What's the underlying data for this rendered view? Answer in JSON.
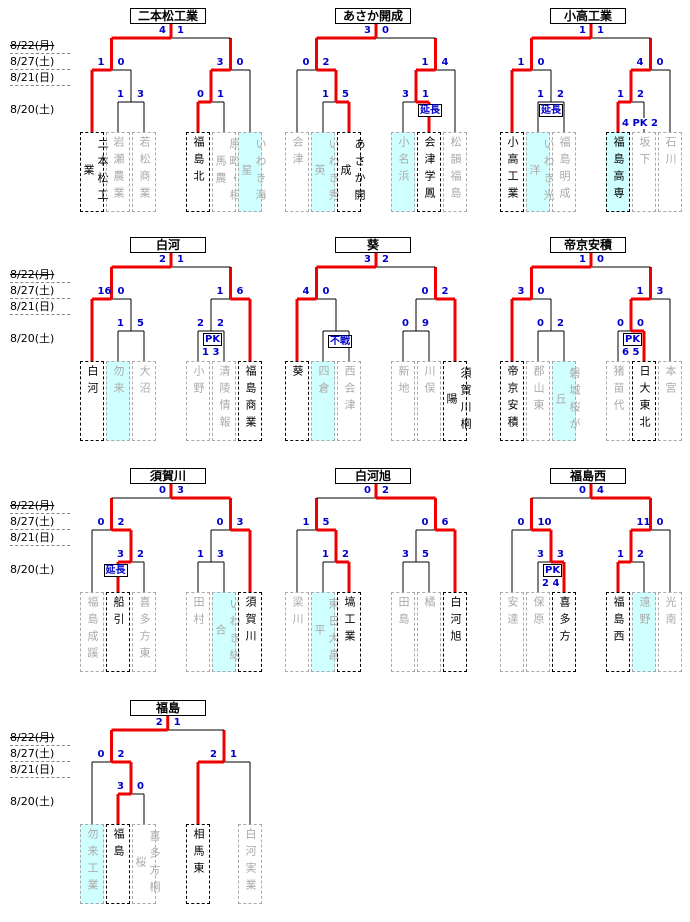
{
  "dates": [
    "8/22(月)",
    "8/27(土)",
    "8/21(日)",
    "8/20(土)"
  ],
  "blocks": [
    {
      "winner": "二本松工業",
      "top_scores": [
        "4",
        "1"
      ],
      "left_scores": [
        "1",
        "0"
      ],
      "right_scores": [
        "3",
        "0"
      ],
      "ll_scores": [
        "1",
        "3"
      ],
      "rr_scores": [
        "0",
        "1"
      ],
      "teams": [
        {
          "name": "二本松工業",
          "lost": false,
          "cyan": false
        },
        {
          "name": "岩瀬農業",
          "lost": true,
          "cyan": false
        },
        {
          "name": "若松商業",
          "lost": true,
          "cyan": false
        },
        {
          "name": "福島北",
          "lost": false,
          "cyan": false
        },
        {
          "name": "原町・相馬農",
          "lost": true,
          "cyan": false
        },
        {
          "name": "いわき海星",
          "lost": true,
          "cyan": true
        }
      ],
      "notes": []
    },
    {
      "winner": "あさか開成",
      "top_scores": [
        "3",
        "0"
      ],
      "left_scores": [
        "0",
        "2"
      ],
      "right_scores": [
        "1",
        "4"
      ],
      "ll_scores": [
        "1",
        "5"
      ],
      "rr_scores": [
        "3",
        "1"
      ],
      "teams": [
        {
          "name": "会津",
          "lost": true,
          "cyan": false
        },
        {
          "name": "いわき秀英",
          "lost": true,
          "cyan": true
        },
        {
          "name": "あさか開成",
          "lost": false,
          "cyan": false
        },
        {
          "name": "小名浜",
          "lost": true,
          "cyan": true
        },
        {
          "name": "会津学鳳",
          "lost": false,
          "cyan": false
        },
        {
          "name": "松韻福島",
          "lost": true,
          "cyan": false
        }
      ],
      "notes": [
        "延長"
      ]
    },
    {
      "winner": "小高工業",
      "top_scores": [
        "1",
        "1"
      ],
      "left_scores": [
        "1",
        "0"
      ],
      "right_scores": [
        "4",
        "0"
      ],
      "ll_scores": [
        "1",
        "2"
      ],
      "rr_scores": [
        "1",
        "2"
      ],
      "teams": [
        {
          "name": "小高工業",
          "lost": false,
          "cyan": false
        },
        {
          "name": "いわき光洋",
          "lost": true,
          "cyan": true
        },
        {
          "name": "福島明成",
          "lost": true,
          "cyan": false
        },
        {
          "name": "福島高専",
          "lost": false,
          "cyan": true
        },
        {
          "name": "坂下",
          "lost": true,
          "cyan": false
        },
        {
          "name": "石川",
          "lost": true,
          "cyan": false
        }
      ],
      "notes": [
        "4 PK 2",
        "延長"
      ]
    },
    {
      "winner": "白河",
      "top_scores": [
        "2",
        "1"
      ],
      "left_scores": [
        "16",
        "0"
      ],
      "right_scores": [
        "1",
        "6"
      ],
      "ll_scores": [
        "1",
        "5"
      ],
      "rr_scores": [
        "2",
        "2"
      ],
      "teams": [
        {
          "name": "白河",
          "lost": false,
          "cyan": false
        },
        {
          "name": "勿来",
          "lost": true,
          "cyan": true
        },
        {
          "name": "大沼",
          "lost": true,
          "cyan": false
        },
        {
          "name": "小野",
          "lost": true,
          "cyan": false
        },
        {
          "name": "清陵情報",
          "lost": true,
          "cyan": false
        },
        {
          "name": "福島商業",
          "lost": false,
          "cyan": false
        }
      ],
      "notes": [
        "PK",
        "1 3"
      ]
    },
    {
      "winner": "葵",
      "top_scores": [
        "3",
        "2"
      ],
      "left_scores": [
        "4",
        "0"
      ],
      "right_scores": [
        "0",
        "2"
      ],
      "ll_scores": [],
      "rr_scores": [
        "0",
        "9"
      ],
      "teams": [
        {
          "name": "葵",
          "lost": false,
          "cyan": false
        },
        {
          "name": "四倉",
          "lost": true,
          "cyan": true
        },
        {
          "name": "西会津",
          "lost": true,
          "cyan": false
        },
        {
          "name": "新地",
          "lost": true,
          "cyan": false
        },
        {
          "name": "川俣",
          "lost": true,
          "cyan": false
        },
        {
          "name": "須賀川桐陽",
          "lost": false,
          "cyan": false
        }
      ],
      "notes": [
        "不戦"
      ]
    },
    {
      "winner": "帝京安積",
      "top_scores": [
        "1",
        "0"
      ],
      "left_scores": [
        "3",
        "0"
      ],
      "right_scores": [
        "1",
        "3"
      ],
      "ll_scores": [
        "0",
        "2"
      ],
      "rr_scores": [
        "0",
        "0"
      ],
      "teams": [
        {
          "name": "帝京安積",
          "lost": false,
          "cyan": false
        },
        {
          "name": "郡山東",
          "lost": true,
          "cyan": false
        },
        {
          "name": "磐城桜が丘",
          "lost": true,
          "cyan": true
        },
        {
          "name": "猪苗代",
          "lost": true,
          "cyan": false
        },
        {
          "name": "日大東北",
          "lost": false,
          "cyan": false
        },
        {
          "name": "本宮",
          "lost": true,
          "cyan": false
        }
      ],
      "notes": [
        "PK",
        "6 5"
      ]
    },
    {
      "winner": "須賀川",
      "top_scores": [
        "0",
        "3"
      ],
      "left_scores": [
        "0",
        "2"
      ],
      "right_scores": [
        "0",
        "3"
      ],
      "ll_scores": [
        "3",
        "2"
      ],
      "rr_scores": [
        "1",
        "3"
      ],
      "teams": [
        {
          "name": "福島成蹊",
          "lost": true,
          "cyan": false
        },
        {
          "name": "船引",
          "lost": false,
          "cyan": false
        },
        {
          "name": "喜多方東",
          "lost": true,
          "cyan": false
        },
        {
          "name": "田村",
          "lost": true,
          "cyan": false
        },
        {
          "name": "いわき総合",
          "lost": true,
          "cyan": true
        },
        {
          "name": "須賀川",
          "lost": false,
          "cyan": false
        }
      ],
      "notes": [
        "延長"
      ]
    },
    {
      "winner": "白河旭",
      "top_scores": [
        "0",
        "2"
      ],
      "left_scores": [
        "1",
        "5"
      ],
      "right_scores": [
        "0",
        "6"
      ],
      "ll_scores": [
        "1",
        "2"
      ],
      "rr_scores": [
        "3",
        "5"
      ],
      "teams": [
        {
          "name": "梁川",
          "lost": true,
          "cyan": false
        },
        {
          "name": "東日大昌平",
          "lost": true,
          "cyan": true
        },
        {
          "name": "塙工業",
          "lost": false,
          "cyan": false
        },
        {
          "name": "田島",
          "lost": true,
          "cyan": false
        },
        {
          "name": "橘",
          "lost": true,
          "cyan": false
        },
        {
          "name": "白河旭",
          "lost": false,
          "cyan": false
        }
      ],
      "notes": []
    },
    {
      "winner": "福島西",
      "top_scores": [
        "0",
        "4"
      ],
      "left_scores": [
        "0",
        "10"
      ],
      "right_scores": [
        "11",
        "0"
      ],
      "ll_scores": [
        "3",
        "3"
      ],
      "rr_scores": [
        "1",
        "2"
      ],
      "teams": [
        {
          "name": "安達",
          "lost": true,
          "cyan": false
        },
        {
          "name": "保原",
          "lost": true,
          "cyan": false
        },
        {
          "name": "喜多方",
          "lost": false,
          "cyan": false
        },
        {
          "name": "福島西",
          "lost": false,
          "cyan": false
        },
        {
          "name": "遠野",
          "lost": true,
          "cyan": true
        },
        {
          "name": "光南",
          "lost": true,
          "cyan": false
        }
      ],
      "notes": [
        "PK",
        "2 4"
      ]
    },
    {
      "winner": "福島",
      "top_scores": [
        "2",
        "1"
      ],
      "left_scores": [
        "0",
        "2"
      ],
      "right_scores": [
        "2",
        "1"
      ],
      "ll_scores": [
        "3",
        "0"
      ],
      "rr_scores": [],
      "teams": [
        {
          "name": "勿来工業",
          "lost": true,
          "cyan": true
        },
        {
          "name": "福島",
          "lost": false,
          "cyan": false
        },
        {
          "name": "喜多方桐桜",
          "lost": true,
          "cyan": false
        },
        {
          "name": "相馬東",
          "lost": false,
          "cyan": false
        },
        {
          "name": "白河実業",
          "lost": true,
          "cyan": false
        }
      ],
      "notes": []
    }
  ]
}
